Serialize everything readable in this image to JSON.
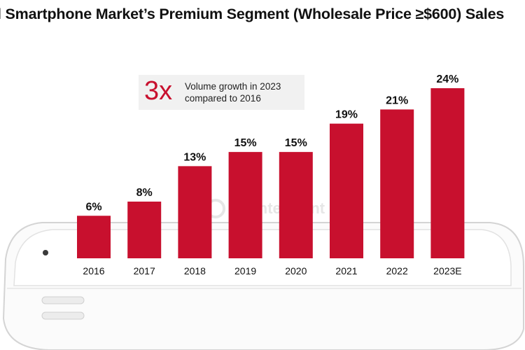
{
  "title": "l Smartphone Market’s Premium Segment (Wholesale Price ≥$600) Sales",
  "callout": {
    "big": "3x",
    "text": "Volume growth in 2023 compared to 2016"
  },
  "watermark": "Counterpoint",
  "colors": {
    "bar": "#c8102e",
    "accent": "#c8102e"
  },
  "chart_data": {
    "type": "bar",
    "title": "l Smartphone Market’s Premium Segment (Wholesale Price ≥$600) Sales",
    "categories": [
      "2016",
      "2017",
      "2018",
      "2019",
      "2020",
      "2021",
      "2022",
      "2023E"
    ],
    "values": [
      6,
      8,
      13,
      15,
      15,
      19,
      21,
      24
    ],
    "data_labels": [
      "6%",
      "8%",
      "13%",
      "15%",
      "15%",
      "19%",
      "21%",
      "24%"
    ],
    "unit": "%",
    "ylim": [
      0,
      24
    ],
    "grid": false,
    "legend": "none"
  }
}
